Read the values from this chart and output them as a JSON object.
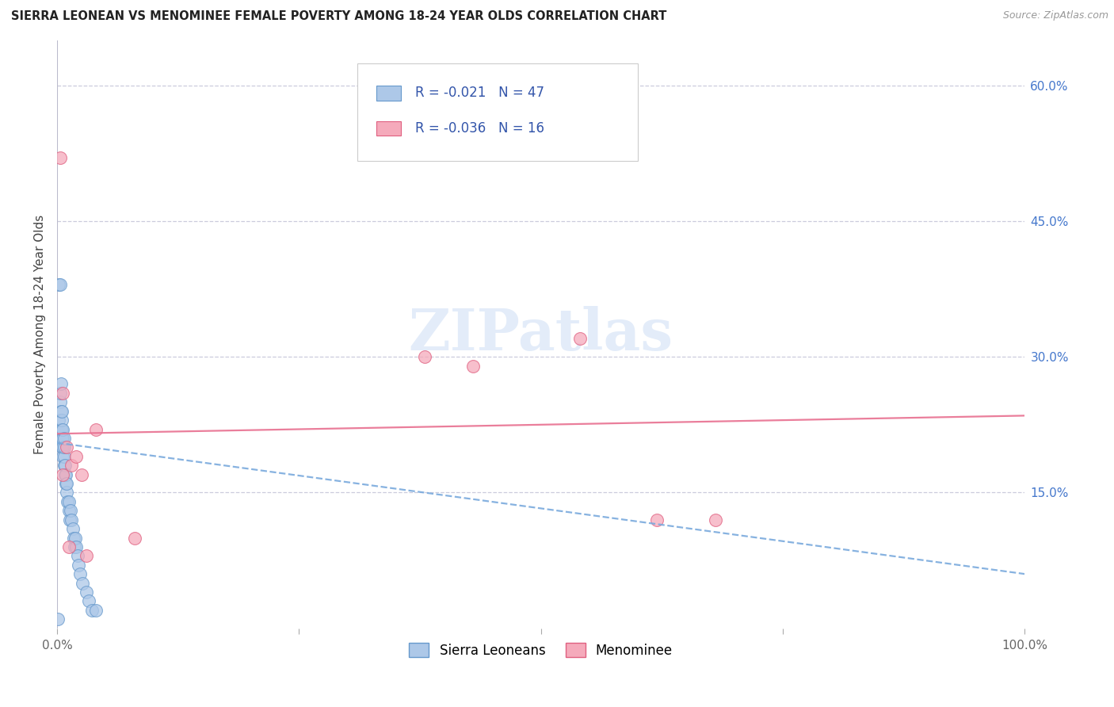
{
  "title": "SIERRA LEONEAN VS MENOMINEE FEMALE POVERTY AMONG 18-24 YEAR OLDS CORRELATION CHART",
  "source": "Source: ZipAtlas.com",
  "ylabel": "Female Poverty Among 18-24 Year Olds",
  "xlim": [
    0,
    1.0
  ],
  "ylim": [
    0,
    0.65
  ],
  "xtick_positions": [
    0.0,
    0.25,
    0.5,
    0.75,
    1.0
  ],
  "xticklabels": [
    "0.0%",
    "",
    "",
    "",
    "100.0%"
  ],
  "ytick_positions": [
    0.15,
    0.3,
    0.45,
    0.6
  ],
  "yticklabels_right": [
    "15.0%",
    "30.0%",
    "45.0%",
    "60.0%"
  ],
  "watermark_text": "ZIPatlas",
  "legend_label1": "R = -0.021   N = 47",
  "legend_label2": "R = -0.036   N = 16",
  "legend_r1": "-0.021",
  "legend_n1": "47",
  "legend_r2": "-0.036",
  "legend_n2": "16",
  "sierra_color_fill": "#adc8e8",
  "sierra_color_edge": "#6699cc",
  "menominee_color_fill": "#f5aabb",
  "menominee_color_edge": "#e06080",
  "blue_line_color": "#7aaadd",
  "pink_line_color": "#e87090",
  "grid_color": "#ccccdd",
  "legend_text_color": "#3355aa",
  "background_color": "#ffffff",
  "sierra_x": [
    0.002,
    0.003,
    0.003,
    0.004,
    0.004,
    0.005,
    0.005,
    0.005,
    0.005,
    0.005,
    0.006,
    0.006,
    0.006,
    0.006,
    0.007,
    0.007,
    0.007,
    0.007,
    0.008,
    0.008,
    0.009,
    0.009,
    0.01,
    0.01,
    0.011,
    0.012,
    0.012,
    0.013,
    0.014,
    0.015,
    0.016,
    0.017,
    0.018,
    0.019,
    0.02,
    0.021,
    0.022,
    0.024,
    0.026,
    0.03,
    0.033,
    0.036,
    0.04,
    0.002,
    0.003,
    0.004,
    0.001
  ],
  "sierra_y": [
    0.23,
    0.25,
    0.26,
    0.22,
    0.24,
    0.2,
    0.21,
    0.22,
    0.23,
    0.24,
    0.19,
    0.2,
    0.21,
    0.22,
    0.18,
    0.19,
    0.2,
    0.21,
    0.17,
    0.18,
    0.16,
    0.17,
    0.15,
    0.16,
    0.14,
    0.13,
    0.14,
    0.12,
    0.13,
    0.12,
    0.11,
    0.1,
    0.09,
    0.1,
    0.09,
    0.08,
    0.07,
    0.06,
    0.05,
    0.04,
    0.03,
    0.02,
    0.02,
    0.38,
    0.38,
    0.27,
    0.01
  ],
  "menominee_x": [
    0.003,
    0.006,
    0.01,
    0.015,
    0.02,
    0.025,
    0.03,
    0.04,
    0.43,
    0.54,
    0.38,
    0.62,
    0.68,
    0.006,
    0.012,
    0.08
  ],
  "menominee_y": [
    0.52,
    0.26,
    0.2,
    0.18,
    0.19,
    0.17,
    0.08,
    0.22,
    0.29,
    0.32,
    0.3,
    0.12,
    0.12,
    0.17,
    0.09,
    0.1
  ],
  "sl_line_x0": 0.0,
  "sl_line_y0": 0.205,
  "sl_line_x1": 1.0,
  "sl_line_y1": 0.06,
  "men_line_x0": 0.0,
  "men_line_y0": 0.215,
  "men_line_x1": 1.0,
  "men_line_y1": 0.235
}
